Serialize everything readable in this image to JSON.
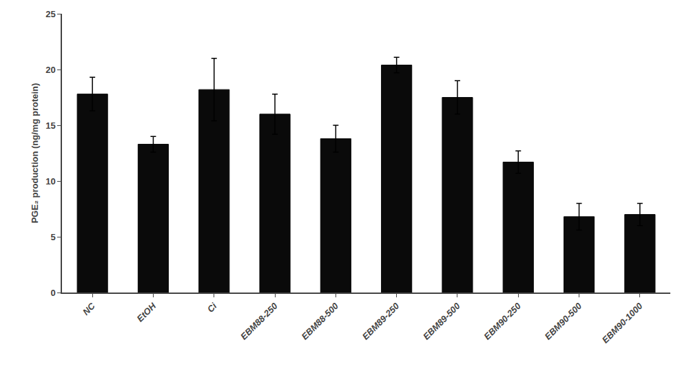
{
  "chart_data": {
    "type": "bar",
    "categories": [
      "NC",
      "EtOH",
      "Ci",
      "EBM88-250",
      "EBM88-500",
      "EBM89-250",
      "EBM89-500",
      "EBM90-250",
      "EBM90-500",
      "EBM90-1000"
    ],
    "values": [
      17.8,
      13.3,
      18.2,
      16.0,
      13.8,
      20.4,
      17.5,
      11.7,
      6.8,
      7.0
    ],
    "errors": [
      1.5,
      0.7,
      2.8,
      1.8,
      1.2,
      0.7,
      1.5,
      1.0,
      1.2,
      1.0
    ],
    "color": "#0a0a0a",
    "ylabel": "PGE₂ production (ng/mg protein)",
    "ylim": [
      0,
      25
    ],
    "yticks": [
      0,
      5,
      10,
      15,
      20,
      25
    ],
    "grid": false
  }
}
